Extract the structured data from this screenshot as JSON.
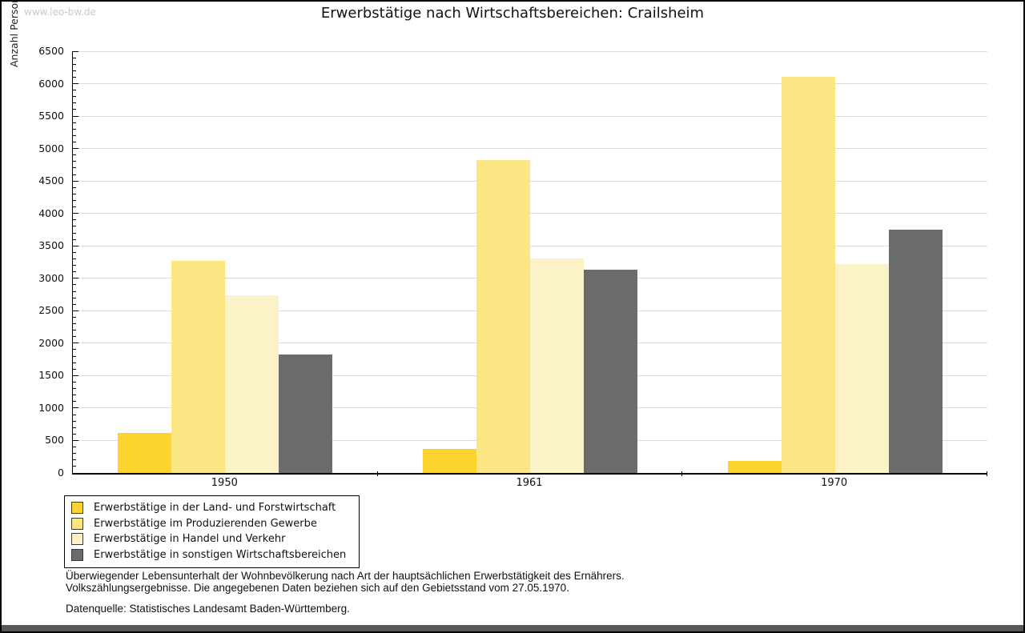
{
  "watermark": "www.leo-bw.de",
  "title": "Erwerbstätige nach Wirtschaftsbereichen: Crailsheim",
  "footnote": {
    "line1": "Überwiegender Lebensunterhalt der Wohnbevölkerung nach Art der hauptsächlichen Erwerbstätigkeit des Ernährers.",
    "line2": "Volkszählungsergebnisse. Die angegebenen Daten beziehen sich auf den Gebietsstand vom 27.05.1970.",
    "source": "Datenquelle: Statistisches Landesamt Baden-Württemberg."
  },
  "colors": {
    "axis": "#000000",
    "gridline": "#dcdcdc",
    "watermark": "#c9c9c9",
    "scrollbar": "#585858"
  },
  "chart_data": {
    "type": "bar",
    "title": "Erwerbstätige nach Wirtschaftsbereichen: Crailsheim",
    "xlabel": "",
    "ylabel": "Anzahl Personen",
    "ylim": [
      0,
      6500
    ],
    "y_major_step": 500,
    "y_minor_step": 100,
    "grid": true,
    "legend_position": "bottom-left",
    "categories": [
      "1950",
      "1961",
      "1970"
    ],
    "series": [
      {
        "name": "Erwerbstätige in der Land- und Forstwirtschaft",
        "color": "#fcd42d",
        "values": [
          620,
          370,
          190
        ]
      },
      {
        "name": "Erwerbstätige im Produzierenden Gewerbe",
        "color": "#fce583",
        "values": [
          3270,
          4820,
          6100
        ]
      },
      {
        "name": "Erwerbstätige in Handel und Verkehr",
        "color": "#fbf2c7",
        "values": [
          2740,
          3300,
          3220
        ]
      },
      {
        "name": "Erwerbstätige in sonstigen Wirtschaftsbereichen",
        "color": "#6b6b6b",
        "values": [
          1830,
          3130,
          3750
        ]
      }
    ]
  }
}
